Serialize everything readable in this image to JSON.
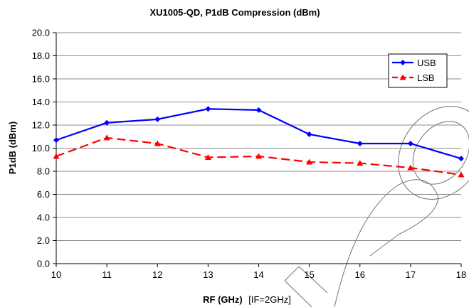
{
  "chart_data": {
    "type": "line",
    "title": "XU1005-QD, P1dB Compression (dBm)",
    "ylabel": "P1dB (dBm)",
    "xlabel_main": "RF (GHz)",
    "xlabel_note": "[IF=2GHz]",
    "x": [
      10,
      11,
      12,
      13,
      14,
      15,
      16,
      17,
      18
    ],
    "xlim": [
      10,
      18
    ],
    "ylim": [
      0,
      20
    ],
    "xticks": [
      "10",
      "11",
      "12",
      "13",
      "14",
      "15",
      "16",
      "17",
      "18"
    ],
    "yticks": [
      "0.0",
      "2.0",
      "4.0",
      "6.0",
      "8.0",
      "10.0",
      "12.0",
      "14.0",
      "16.0",
      "18.0",
      "20.0"
    ],
    "grid": "horizontal",
    "legend_position": "top-right",
    "series": [
      {
        "name": "USB",
        "values": [
          10.7,
          12.2,
          12.5,
          13.4,
          13.3,
          11.2,
          10.4,
          10.4,
          9.1
        ],
        "color": "#0000ff",
        "marker": "diamond",
        "dash": "solid"
      },
      {
        "name": "LSB",
        "values": [
          9.3,
          10.9,
          10.4,
          9.2,
          9.3,
          8.8,
          8.7,
          8.3,
          7.7
        ],
        "color": "#ff0000",
        "marker": "triangle",
        "dash": "dashed"
      }
    ]
  }
}
